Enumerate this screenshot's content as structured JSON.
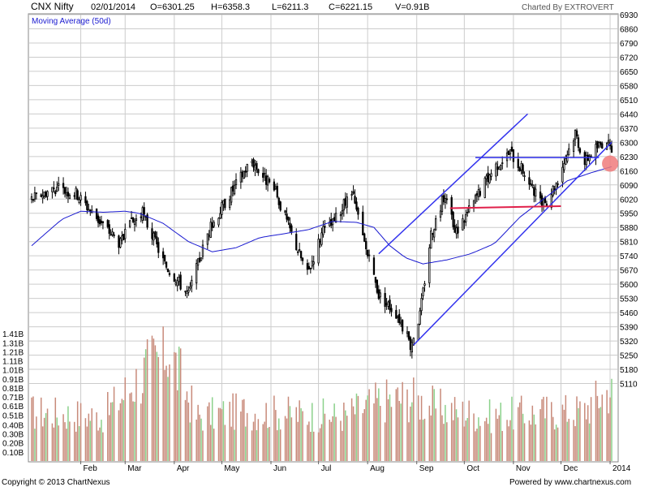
{
  "header": {
    "symbol": "CNX Nifty",
    "date": "02/01/2014",
    "open": "O=6301.25",
    "high": "H=6358.3",
    "low": "L=6211.3",
    "close": "C=6221.15",
    "volume": "V=0.91B",
    "charted_by": "Charted By EXTROVERT"
  },
  "indicator_label": "Moving Average (50d)",
  "footer": {
    "copyright": "Copyright © 2013 ChartNexus",
    "powered_by": "Powered by www.chartnexus.com"
  },
  "colors": {
    "moving_average": "#1a1ad0",
    "trendlines": "#3333ee",
    "support_line": "#e0204a",
    "highlight": "#f07b7b",
    "volume_bar": "#c88a7a",
    "volume_bar_highlight": "#8bd18b",
    "grid": "#cccccc"
  },
  "chart_data": {
    "type": "candlestick",
    "price_axis": {
      "ticks": [
        "6930",
        "6860",
        "6790",
        "6720",
        "6650",
        "6580",
        "6510",
        "6440",
        "6370",
        "6300",
        "6230",
        "6160",
        "6090",
        "6020",
        "5950",
        "5880",
        "5810",
        "5740",
        "5670",
        "5600",
        "5530",
        "5460",
        "5390",
        "5320",
        "5250",
        "5180",
        "5110"
      ],
      "ylim": [
        5040,
        6930
      ]
    },
    "volume_axis": {
      "ticks": [
        "1.41B",
        "1.31B",
        "1.21B",
        "1.11B",
        "1.01B",
        "0.91B",
        "0.81B",
        "0.71B",
        "0.61B",
        "0.51B",
        "0.40B",
        "0.30B",
        "0.20B",
        "0.10B"
      ],
      "ylim": [
        0,
        1.51
      ]
    },
    "x_axis": {
      "months": [
        "Feb",
        "Mar",
        "Apr",
        "May",
        "Jun",
        "Jul",
        "Aug",
        "Sep",
        "Oct",
        "Nov",
        "Dec",
        "2014"
      ]
    },
    "grid": true,
    "price_anchors": [
      [
        "2013-01-01",
        6020
      ],
      [
        "2013-01-15",
        6075
      ],
      [
        "2013-01-29",
        6050
      ],
      [
        "2013-02-12",
        5920
      ],
      [
        "2013-02-26",
        5800
      ],
      [
        "2013-03-05",
        5900
      ],
      [
        "2013-03-12",
        5950
      ],
      [
        "2013-03-26",
        5700
      ],
      [
        "2013-04-10",
        5550
      ],
      [
        "2013-04-22",
        5850
      ],
      [
        "2013-05-01",
        5980
      ],
      [
        "2013-05-17",
        6180
      ],
      [
        "2013-05-20",
        6210
      ],
      [
        "2013-06-04",
        6050
      ],
      [
        "2013-06-14",
        5850
      ],
      [
        "2013-06-24",
        5650
      ],
      [
        "2013-07-03",
        5850
      ],
      [
        "2013-07-10",
        5900
      ],
      [
        "2013-07-22",
        6050
      ],
      [
        "2013-07-30",
        5800
      ],
      [
        "2013-08-08",
        5550
      ],
      [
        "2013-08-20",
        5450
      ],
      [
        "2013-08-28",
        5300
      ],
      [
        "2013-09-03",
        5450
      ],
      [
        "2013-09-10",
        5850
      ],
      [
        "2013-09-19",
        6050
      ],
      [
        "2013-09-25",
        5850
      ],
      [
        "2013-10-03",
        5950
      ],
      [
        "2013-10-10",
        6050
      ],
      [
        "2013-10-20",
        6180
      ],
      [
        "2013-10-30",
        6250
      ],
      [
        "2013-11-08",
        6150
      ],
      [
        "2013-11-14",
        6050
      ],
      [
        "2013-11-20",
        5990
      ],
      [
        "2013-11-28",
        6100
      ],
      [
        "2013-12-05",
        6250
      ],
      [
        "2013-12-10",
        6350
      ],
      [
        "2013-12-16",
        6200
      ],
      [
        "2013-12-20",
        6250
      ],
      [
        "2013-12-30",
        6320
      ],
      [
        "2014-01-02",
        6221
      ]
    ],
    "moving_average_50d": [
      [
        "2013-01-01",
        5790
      ],
      [
        "2013-01-20",
        5920
      ],
      [
        "2013-02-01",
        5960
      ],
      [
        "2013-02-15",
        5955
      ],
      [
        "2013-03-01",
        5960
      ],
      [
        "2013-03-10",
        5950
      ],
      [
        "2013-03-25",
        5900
      ],
      [
        "2013-04-10",
        5810
      ],
      [
        "2013-04-25",
        5760
      ],
      [
        "2013-05-10",
        5780
      ],
      [
        "2013-05-25",
        5830
      ],
      [
        "2013-06-10",
        5850
      ],
      [
        "2013-06-25",
        5870
      ],
      [
        "2013-07-10",
        5910
      ],
      [
        "2013-07-25",
        5905
      ],
      [
        "2013-08-05",
        5880
      ],
      [
        "2013-08-15",
        5790
      ],
      [
        "2013-08-25",
        5730
      ],
      [
        "2013-09-05",
        5700
      ],
      [
        "2013-09-20",
        5720
      ],
      [
        "2013-10-05",
        5750
      ],
      [
        "2013-10-20",
        5800
      ],
      [
        "2013-11-05",
        5930
      ],
      [
        "2013-11-20",
        6020
      ],
      [
        "2013-12-05",
        6110
      ],
      [
        "2013-12-20",
        6150
      ],
      [
        "2014-01-02",
        6180
      ]
    ],
    "trendlines": [
      {
        "name": "channel-upper",
        "from": [
          "2013-08-08",
          5750
        ],
        "to": [
          "2013-11-10",
          6440
        ]
      },
      {
        "name": "channel-lower",
        "from": [
          "2013-08-30",
          5300
        ],
        "to": [
          "2014-01-02",
          6300
        ]
      },
      {
        "name": "resistance",
        "from": [
          "2013-10-08",
          6225
        ],
        "to": [
          "2013-12-25",
          6225
        ]
      }
    ],
    "support_line": {
      "from": [
        "2013-09-22",
        5975
      ],
      "to": [
        "2013-12-01",
        5985
      ]
    },
    "highlight_point": [
      "2014-01-01",
      6195
    ],
    "volume_anchors": [
      [
        "2013-01-01",
        0.6
      ],
      [
        "2013-02-15",
        0.55
      ],
      [
        "2013-03-28",
        1.4
      ],
      [
        "2013-04-15",
        0.55
      ],
      [
        "2013-05-15",
        0.62
      ],
      [
        "2013-06-15",
        0.58
      ],
      [
        "2013-07-15",
        0.55
      ],
      [
        "2013-08-10",
        0.75
      ],
      [
        "2013-08-28",
        0.78
      ],
      [
        "2013-09-15",
        0.65
      ],
      [
        "2013-10-15",
        0.55
      ],
      [
        "2013-11-15",
        0.6
      ],
      [
        "2013-12-15",
        0.62
      ],
      [
        "2014-01-02",
        0.91
      ]
    ]
  }
}
